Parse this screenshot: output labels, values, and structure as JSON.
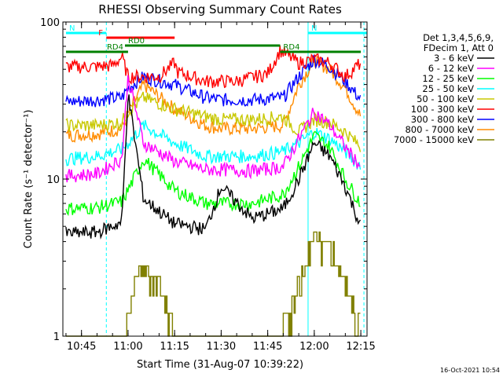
{
  "chart_data": {
    "type": "line",
    "title": "RHESSI Observing Summary Count Rates",
    "xlabel": "Start Time (31-Aug-07 10:39:22)",
    "ylabel": "Count Rate (s⁻¹ detector⁻¹)",
    "y_scale": "log",
    "ylim": [
      1,
      100
    ],
    "xlim": [
      "10:39",
      "12:17"
    ],
    "x_ticks": [
      "10:45",
      "11:00",
      "11:15",
      "11:30",
      "11:45",
      "12:00",
      "12:15"
    ],
    "y_ticks": [
      "1",
      "10",
      "100"
    ],
    "grid": false,
    "legend_position": "right",
    "legend_header": [
      "Det 1,3,4,5,6,9,",
      "FDecim 1, Att 0"
    ],
    "series": [
      {
        "name": "3 - 6 keV",
        "color": "#000000",
        "x": [
          "10:40",
          "10:50",
          "10:58",
          "11:00",
          "11:05",
          "11:15",
          "11:25",
          "11:30",
          "11:40",
          "11:50",
          "11:55",
          "12:00",
          "12:05",
          "12:10",
          "12:15"
        ],
        "values": [
          4.5,
          4.6,
          5.3,
          35,
          7.5,
          5.2,
          4.8,
          9,
          5.6,
          6.5,
          10,
          17,
          14,
          9,
          5
        ]
      },
      {
        "name": "6 - 12 keV",
        "color": "#ff00ff",
        "x": [
          "10:40",
          "10:50",
          "10:58",
          "11:00",
          "11:05",
          "11:15",
          "11:25",
          "11:30",
          "11:40",
          "11:50",
          "11:55",
          "12:00",
          "12:05",
          "12:10",
          "12:15"
        ],
        "values": [
          10.5,
          10.8,
          13.5,
          45,
          17,
          13,
          11.5,
          11.5,
          11.3,
          12,
          18,
          27,
          22,
          16,
          12
        ]
      },
      {
        "name": "12 - 25 keV",
        "color": "#00ff00",
        "x": [
          "10:40",
          "10:50",
          "10:58",
          "11:00",
          "11:05",
          "11:15",
          "11:25",
          "11:30",
          "11:40",
          "11:50",
          "11:55",
          "12:00",
          "12:05",
          "12:10",
          "12:15"
        ],
        "values": [
          6.5,
          6.6,
          7.2,
          8.5,
          13.5,
          8.5,
          7,
          7,
          7,
          8,
          12,
          19,
          16,
          10,
          7
        ]
      },
      {
        "name": "25 - 50 keV",
        "color": "#00ffff",
        "x": [
          "10:40",
          "10:50",
          "10:58",
          "11:00",
          "11:05",
          "11:15",
          "11:25",
          "11:30",
          "11:40",
          "11:50",
          "11:55",
          "12:00",
          "12:05",
          "12:10",
          "12:15"
        ],
        "values": [
          13.5,
          14,
          15.5,
          17,
          22,
          17,
          14,
          14,
          14,
          15,
          17,
          20,
          18,
          15,
          12
        ]
      },
      {
        "name": "50 - 100 keV",
        "color": "#c8c800",
        "x": [
          "10:40",
          "10:50",
          "10:58",
          "11:00",
          "11:05",
          "11:15",
          "11:25",
          "11:30",
          "11:40",
          "11:50",
          "11:55",
          "12:00",
          "12:05",
          "12:10",
          "12:15"
        ],
        "values": [
          22,
          22,
          23,
          27,
          33,
          28,
          25,
          24,
          24,
          25,
          20,
          24,
          23,
          20,
          16
        ]
      },
      {
        "name": "100 - 300 keV",
        "color": "#ff0000",
        "x": [
          "10:40",
          "10:50",
          "10:55",
          "10:58",
          "11:00",
          "11:10",
          "11:15",
          "11:16",
          "11:25",
          "11:35",
          "11:45",
          "11:49",
          "11:55",
          "12:00",
          "12:05",
          "12:10",
          "12:15"
        ],
        "values": [
          52,
          52,
          53,
          60,
          45,
          45,
          55,
          48,
          42,
          42,
          47,
          66,
          55,
          58,
          55,
          45,
          55
        ]
      },
      {
        "name": "300 - 800 keV",
        "color": "#0000ff",
        "x": [
          "10:40",
          "10:50",
          "10:58",
          "11:00",
          "11:05",
          "11:15",
          "11:25",
          "11:30",
          "11:40",
          "11:50",
          "11:55",
          "12:00",
          "12:05",
          "12:10",
          "12:15"
        ],
        "values": [
          31,
          32,
          33,
          38,
          45,
          40,
          33,
          32,
          32,
          33,
          45,
          58,
          52,
          42,
          32
        ]
      },
      {
        "name": "800 - 7000 keV",
        "color": "#ff8c00",
        "x": [
          "10:40",
          "10:50",
          "10:58",
          "11:00",
          "11:05",
          "11:15",
          "11:25",
          "11:30",
          "11:40",
          "11:50",
          "11:55",
          "12:00",
          "12:05",
          "12:10",
          "12:15"
        ],
        "values": [
          19,
          19.5,
          21,
          26,
          40,
          28,
          22,
          21,
          21,
          22,
          40,
          57,
          50,
          38,
          25
        ]
      },
      {
        "name": "7000 - 15000 keV",
        "color": "#808000",
        "x": [
          "10:40",
          "10:50",
          "10:59",
          "11:00",
          "11:03",
          "11:05",
          "11:10",
          "11:12",
          "11:15",
          "11:40",
          "11:48",
          "11:52",
          "11:55",
          "12:00",
          "12:05",
          "12:10",
          "12:15"
        ],
        "values": [
          1,
          1,
          1,
          1.6,
          2.7,
          2.7,
          2.4,
          1.8,
          1,
          1,
          1,
          1.4,
          2.3,
          4.5,
          4,
          2.2,
          1.2
        ]
      }
    ],
    "flag_bars": [
      {
        "label": "N",
        "color": "#00ffff",
        "start": "10:40",
        "end": "10:53"
      },
      {
        "label": "N",
        "color": "#00ffff",
        "start": "11:58",
        "end": "12:17"
      },
      {
        "label": "F",
        "color": "#ff0000",
        "start": "10:53",
        "end": "11:15"
      },
      {
        "label": "RD0",
        "color": "#008000",
        "start": "10:59",
        "end": "11:49"
      },
      {
        "label": "RD4",
        "color": "#008000",
        "start": "10:40",
        "end": "11:00"
      },
      {
        "label": "RD4",
        "color": "#008000",
        "start": "11:49",
        "end": "12:15"
      }
    ],
    "vertical_markers": [
      {
        "time": "10:53",
        "style": "dashed",
        "color": "#00ffff"
      },
      {
        "time": "11:58",
        "style": "solid",
        "color": "#00ffff"
      },
      {
        "time": "12:16",
        "style": "dashed",
        "color": "#00ffff"
      }
    ]
  },
  "footer_timestamp": "16-Oct-2021 10:54"
}
